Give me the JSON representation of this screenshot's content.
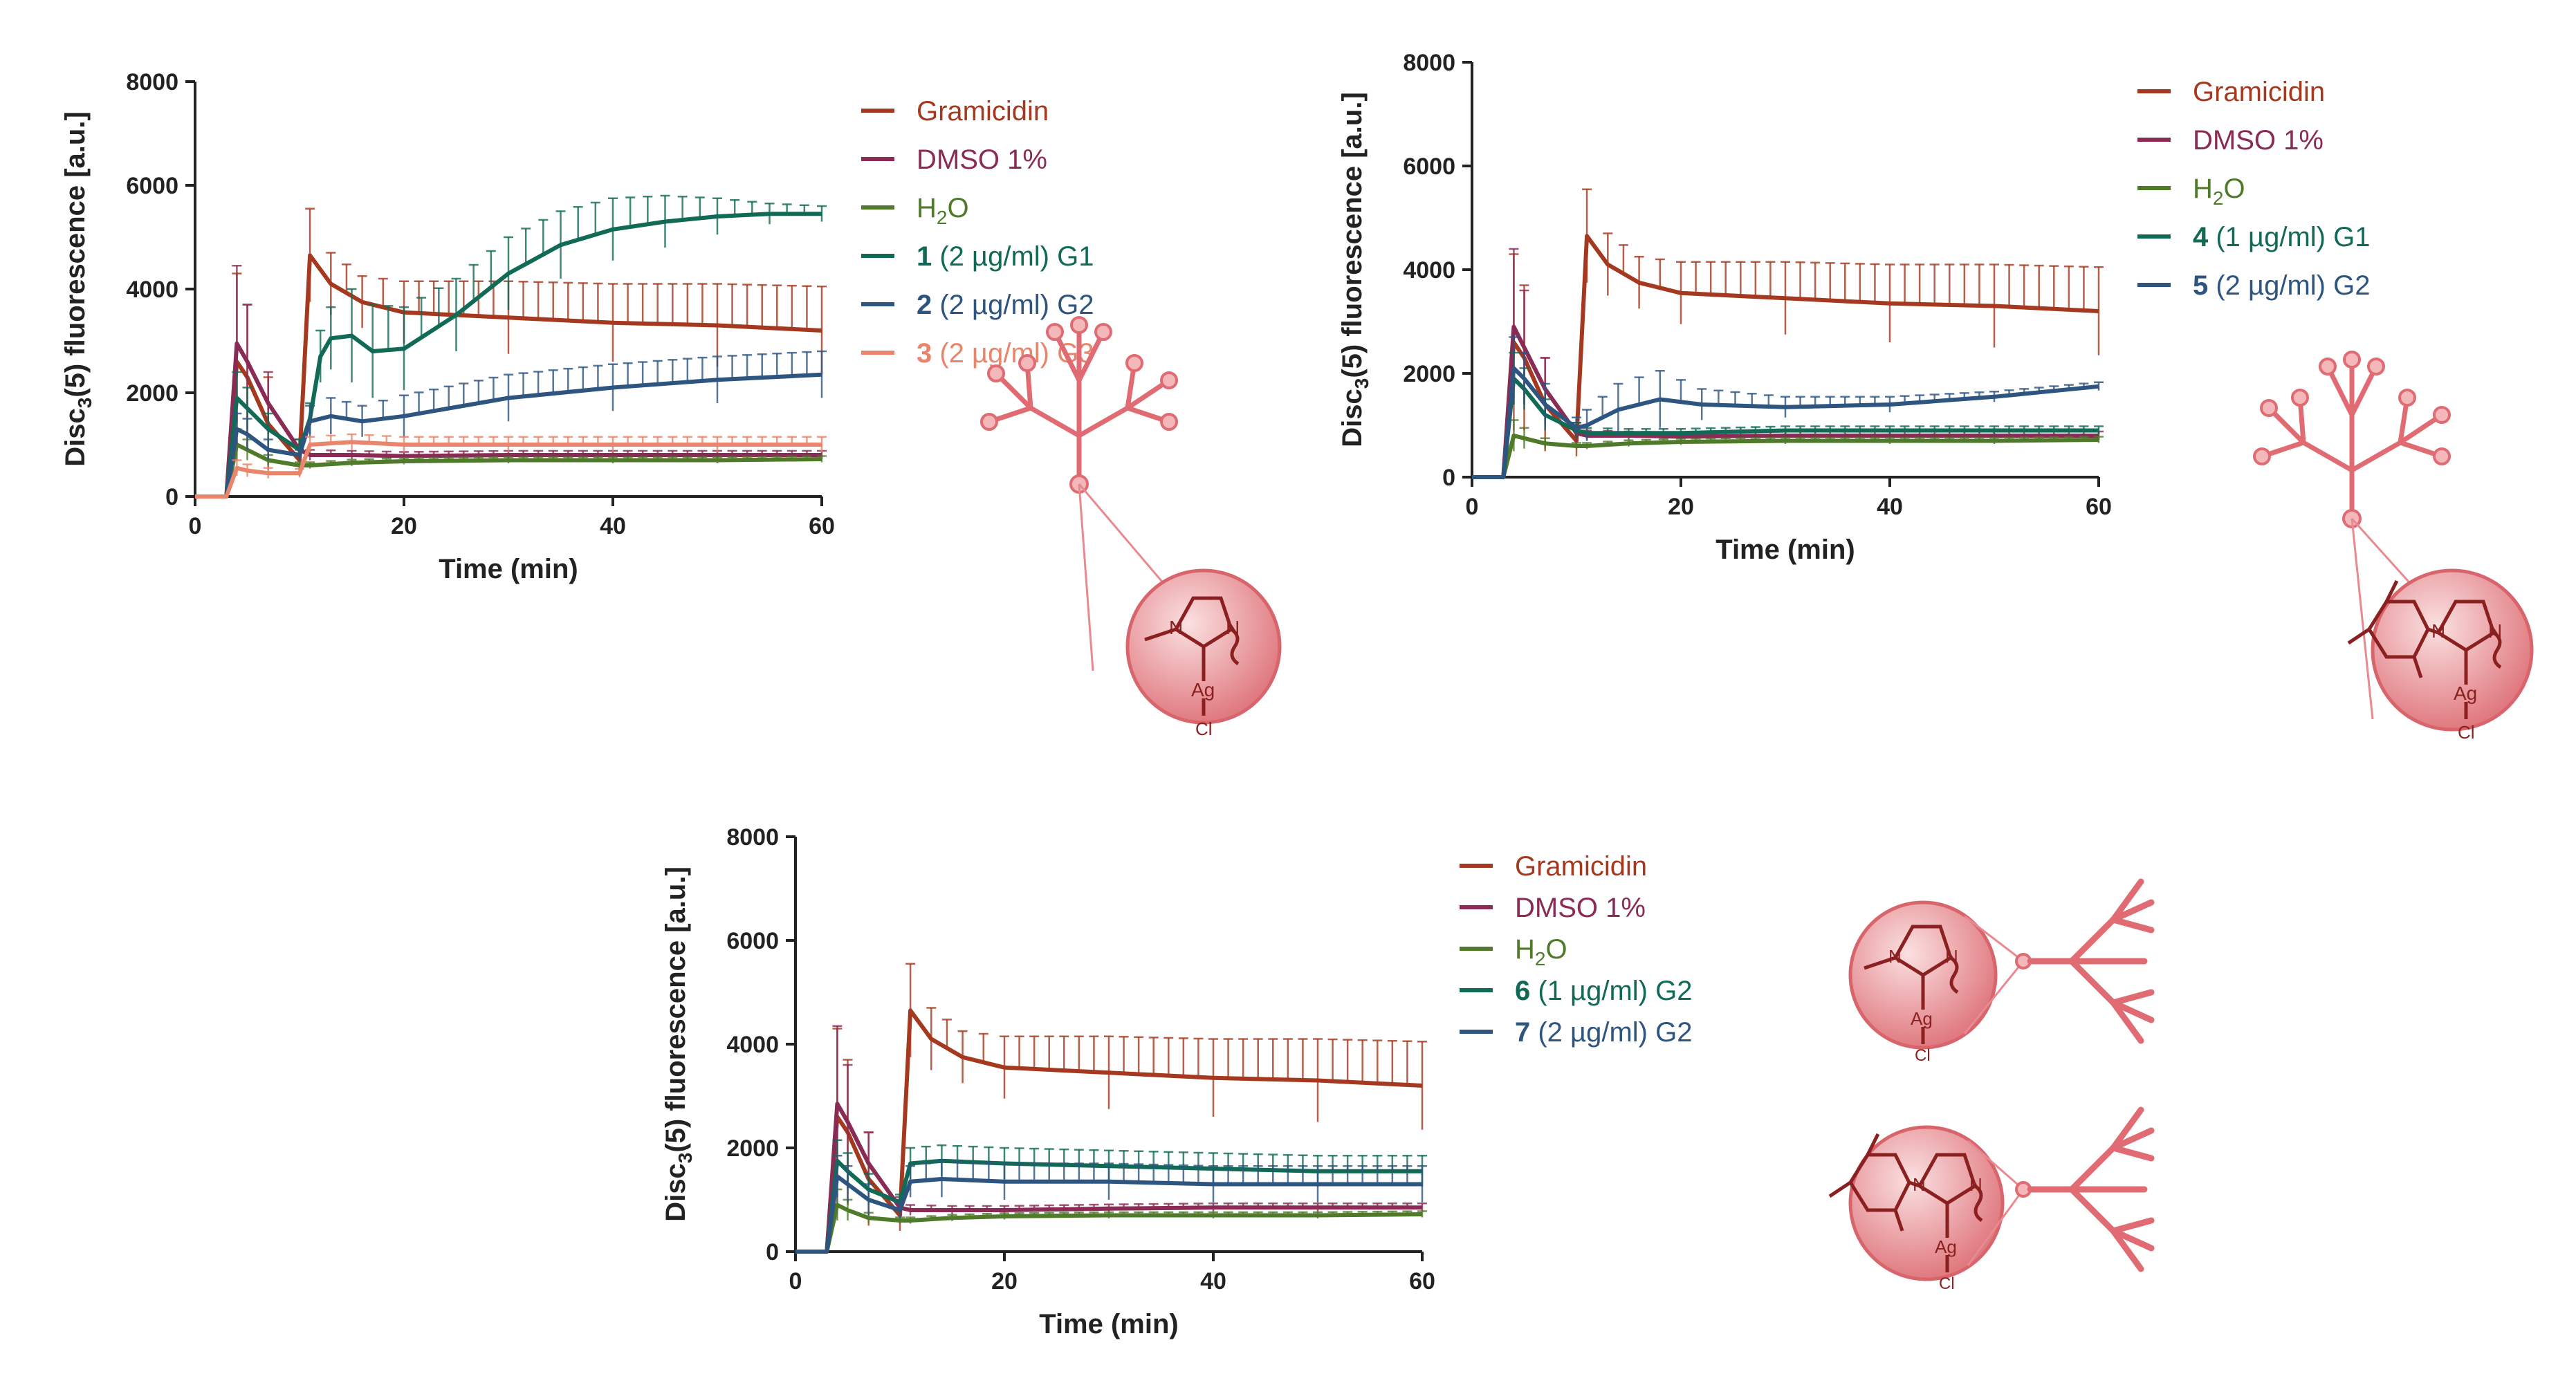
{
  "colors": {
    "gramicidin": "#a5391f",
    "dmso": "#8a2b55",
    "h2o": "#4f7a2a",
    "s1": "#106a55",
    "s2": "#2d5580",
    "s3": "#e9856a",
    "s4": "#106a55",
    "s5": "#2d5580",
    "s6": "#106a55",
    "s7": "#2d5580",
    "dendrimer": "#e06b72",
    "sphere": "#e88a8f"
  },
  "molecule_labels": {
    "n": "N",
    "ag": "Ag",
    "cl": "Cl"
  },
  "chart_data": [
    {
      "type": "line",
      "xlabel": "Time (min)",
      "ylabel_main": "Disc",
      "ylabel_sub": "3",
      "ylabel_rest": "(5) fluorescence [a.u.]",
      "xlim": [
        0,
        60
      ],
      "ylim": [
        0,
        8000
      ],
      "xticks": [
        "0",
        "20",
        "40",
        "60"
      ],
      "yticks": [
        "0",
        "2000",
        "4000",
        "6000",
        "8000"
      ],
      "legend": [
        {
          "bold": "",
          "text": "Gramicidin"
        },
        {
          "bold": "",
          "text": "DMSO 1%"
        },
        {
          "bold": "",
          "text": "H",
          "sub": "2",
          "rest": "O"
        },
        {
          "bold": "1",
          "text": " (2 µg/ml) G1"
        },
        {
          "bold": "2",
          "text": " (2 µg/ml) G2"
        },
        {
          "bold": "3",
          "text": " (2 µg/ml) G3"
        }
      ],
      "series": [
        {
          "name": "Gramicidin",
          "x": [
            0,
            3,
            4,
            5,
            7,
            10,
            11,
            13,
            16,
            20,
            30,
            40,
            50,
            60
          ],
          "values": [
            0,
            0,
            2600,
            2300,
            1400,
            700,
            4650,
            4100,
            3750,
            3550,
            3450,
            3350,
            3300,
            3200
          ],
          "err": [
            0,
            0,
            1700,
            1400,
            900,
            300,
            900,
            600,
            500,
            600,
            700,
            750,
            800,
            850
          ]
        },
        {
          "name": "DMSO 1%",
          "x": [
            0,
            3,
            4,
            5,
            7,
            10,
            11,
            15,
            20,
            30,
            40,
            50,
            60
          ],
          "values": [
            0,
            0,
            2950,
            2600,
            1800,
            900,
            800,
            800,
            780,
            800,
            800,
            800,
            800
          ],
          "err": [
            0,
            0,
            1500,
            1100,
            600,
            200,
            100,
            80,
            80,
            80,
            80,
            80,
            80
          ]
        },
        {
          "name": "H2O",
          "x": [
            0,
            3,
            4,
            5,
            7,
            10,
            11,
            15,
            20,
            30,
            40,
            50,
            60
          ],
          "values": [
            0,
            0,
            1000,
            900,
            700,
            600,
            600,
            650,
            680,
            700,
            700,
            700,
            720
          ],
          "err": [
            0,
            0,
            300,
            200,
            100,
            60,
            60,
            60,
            60,
            60,
            60,
            60,
            60
          ]
        },
        {
          "name": "1 (2 µg/ml) G1",
          "x": [
            0,
            3,
            4,
            5,
            7,
            10,
            11,
            12,
            13,
            15,
            17,
            20,
            25,
            30,
            35,
            40,
            45,
            50,
            55,
            60
          ],
          "values": [
            0,
            0,
            1900,
            1700,
            1300,
            900,
            1500,
            2700,
            3050,
            3100,
            2800,
            2850,
            3500,
            4300,
            4850,
            5150,
            5300,
            5400,
            5450,
            5450
          ],
          "err": [
            0,
            0,
            500,
            400,
            300,
            200,
            300,
            500,
            600,
            900,
            900,
            800,
            700,
            700,
            650,
            600,
            500,
            350,
            200,
            150
          ]
        },
        {
          "name": "2 (2 µg/ml) G2",
          "x": [
            0,
            3,
            4,
            5,
            7,
            10,
            11,
            13,
            16,
            20,
            30,
            40,
            50,
            60
          ],
          "values": [
            0,
            0,
            1300,
            1200,
            900,
            800,
            1450,
            1550,
            1450,
            1550,
            1900,
            2100,
            2250,
            2350
          ],
          "err": [
            0,
            0,
            300,
            300,
            200,
            100,
            300,
            350,
            300,
            400,
            450,
            450,
            450,
            450
          ]
        },
        {
          "name": "3 (2 µg/ml) G3",
          "x": [
            0,
            3,
            4,
            5,
            7,
            10,
            11,
            15,
            20,
            30,
            40,
            50,
            60
          ],
          "values": [
            0,
            0,
            550,
            500,
            450,
            450,
            1000,
            1050,
            1000,
            1000,
            1000,
            1000,
            1000
          ],
          "err": [
            0,
            0,
            150,
            120,
            100,
            80,
            150,
            150,
            150,
            150,
            150,
            150,
            150
          ]
        }
      ]
    },
    {
      "type": "line",
      "xlabel": "Time (min)",
      "ylabel_main": "Disc",
      "ylabel_sub": "3",
      "ylabel_rest": "(5) fluorescence [a.u.]",
      "xlim": [
        0,
        60
      ],
      "ylim": [
        0,
        8000
      ],
      "xticks": [
        "0",
        "20",
        "40",
        "60"
      ],
      "yticks": [
        "0",
        "2000",
        "4000",
        "6000",
        "8000"
      ],
      "legend": [
        {
          "bold": "",
          "text": "Gramicidin"
        },
        {
          "bold": "",
          "text": "DMSO 1%"
        },
        {
          "bold": "",
          "text": "H",
          "sub": "2",
          "rest": "O"
        },
        {
          "bold": "4",
          "text": " (1 µg/ml) G1"
        },
        {
          "bold": "5",
          "text": " (2 µg/ml) G2"
        }
      ],
      "series": [
        {
          "name": "Gramicidin",
          "x": [
            0,
            3,
            4,
            5,
            7,
            10,
            11,
            13,
            16,
            20,
            30,
            40,
            50,
            60
          ],
          "values": [
            0,
            0,
            2600,
            2300,
            1400,
            700,
            4650,
            4100,
            3750,
            3550,
            3450,
            3350,
            3300,
            3200
          ],
          "err": [
            0,
            0,
            1700,
            1400,
            900,
            300,
            900,
            600,
            500,
            600,
            700,
            750,
            800,
            850
          ]
        },
        {
          "name": "DMSO 1%",
          "x": [
            0,
            3,
            4,
            5,
            7,
            10,
            11,
            15,
            20,
            30,
            40,
            50,
            60
          ],
          "values": [
            0,
            0,
            2900,
            2500,
            1700,
            850,
            800,
            800,
            780,
            800,
            800,
            800,
            800
          ],
          "err": [
            0,
            0,
            1500,
            1100,
            600,
            200,
            100,
            80,
            80,
            80,
            80,
            80,
            80
          ]
        },
        {
          "name": "H2O",
          "x": [
            0,
            3,
            4,
            5,
            7,
            10,
            11,
            15,
            20,
            30,
            40,
            50,
            60
          ],
          "values": [
            0,
            0,
            800,
            750,
            650,
            600,
            600,
            650,
            680,
            700,
            700,
            700,
            720
          ],
          "err": [
            0,
            0,
            300,
            200,
            100,
            60,
            60,
            60,
            60,
            60,
            60,
            60,
            60
          ]
        },
        {
          "name": "4 (1 µg/ml) G1",
          "x": [
            0,
            3,
            4,
            5,
            7,
            10,
            11,
            15,
            20,
            30,
            40,
            50,
            60
          ],
          "values": [
            0,
            0,
            1900,
            1700,
            1200,
            900,
            850,
            850,
            850,
            900,
            900,
            900,
            900
          ],
          "err": [
            0,
            0,
            500,
            400,
            300,
            150,
            100,
            80,
            80,
            80,
            80,
            80,
            80
          ]
        },
        {
          "name": "5 (2 µg/ml) G2",
          "x": [
            0,
            3,
            4,
            5,
            7,
            10,
            11,
            14,
            18,
            22,
            30,
            40,
            50,
            60
          ],
          "values": [
            0,
            0,
            2100,
            1900,
            1400,
            950,
            1000,
            1300,
            1500,
            1400,
            1350,
            1400,
            1550,
            1750
          ],
          "err": [
            0,
            0,
            600,
            500,
            400,
            200,
            300,
            500,
            550,
            300,
            200,
            150,
            100,
            80
          ]
        }
      ]
    },
    {
      "type": "line",
      "xlabel": "Time (min)",
      "ylabel_main": "Disc",
      "ylabel_sub": "3",
      "ylabel_rest": "(5) fluorescence [a.u.]",
      "xlim": [
        0,
        60
      ],
      "ylim": [
        0,
        8000
      ],
      "xticks": [
        "0",
        "20",
        "40",
        "60"
      ],
      "yticks": [
        "0",
        "2000",
        "4000",
        "6000",
        "8000"
      ],
      "legend": [
        {
          "bold": "",
          "text": "Gramicidin"
        },
        {
          "bold": "",
          "text": "DMSO 1%"
        },
        {
          "bold": "",
          "text": "H",
          "sub": "2",
          "rest": "O"
        },
        {
          "bold": "6",
          "text": " (1 µg/ml) G2"
        },
        {
          "bold": "7",
          "text": " (2 µg/ml) G2"
        }
      ],
      "series": [
        {
          "name": "Gramicidin",
          "x": [
            0,
            3,
            4,
            5,
            7,
            10,
            11,
            13,
            16,
            20,
            30,
            40,
            50,
            60
          ],
          "values": [
            0,
            0,
            2600,
            2300,
            1400,
            700,
            4650,
            4100,
            3750,
            3550,
            3450,
            3350,
            3300,
            3200
          ],
          "err": [
            0,
            0,
            1700,
            1400,
            900,
            300,
            900,
            600,
            500,
            600,
            700,
            750,
            800,
            850
          ]
        },
        {
          "name": "DMSO 1%",
          "x": [
            0,
            3,
            4,
            5,
            7,
            10,
            11,
            15,
            20,
            30,
            40,
            50,
            60
          ],
          "values": [
            0,
            0,
            2850,
            2500,
            1700,
            850,
            800,
            800,
            800,
            830,
            850,
            850,
            850
          ],
          "err": [
            0,
            0,
            1500,
            1100,
            600,
            200,
            100,
            80,
            80,
            80,
            80,
            80,
            80
          ]
        },
        {
          "name": "H2O",
          "x": [
            0,
            3,
            4,
            5,
            7,
            10,
            11,
            15,
            20,
            30,
            40,
            50,
            60
          ],
          "values": [
            0,
            0,
            900,
            800,
            650,
            600,
            600,
            650,
            680,
            700,
            700,
            700,
            720
          ],
          "err": [
            0,
            0,
            300,
            200,
            100,
            60,
            60,
            60,
            60,
            60,
            60,
            60,
            60
          ]
        },
        {
          "name": "6 (1 µg/ml) G2",
          "x": [
            0,
            3,
            4,
            5,
            7,
            10,
            11,
            14,
            20,
            30,
            40,
            50,
            60
          ],
          "values": [
            0,
            0,
            1750,
            1550,
            1200,
            950,
            1700,
            1750,
            1700,
            1650,
            1600,
            1550,
            1550
          ],
          "err": [
            0,
            0,
            400,
            350,
            300,
            150,
            300,
            300,
            300,
            300,
            300,
            300,
            300
          ]
        },
        {
          "name": "7 (2 µg/ml) G2",
          "x": [
            0,
            3,
            4,
            5,
            7,
            10,
            11,
            14,
            20,
            30,
            40,
            50,
            60
          ],
          "values": [
            0,
            0,
            1450,
            1300,
            1000,
            800,
            1350,
            1400,
            1350,
            1350,
            1300,
            1300,
            1300
          ],
          "err": [
            0,
            0,
            400,
            350,
            300,
            150,
            300,
            350,
            350,
            350,
            350,
            350,
            350
          ]
        }
      ]
    }
  ]
}
